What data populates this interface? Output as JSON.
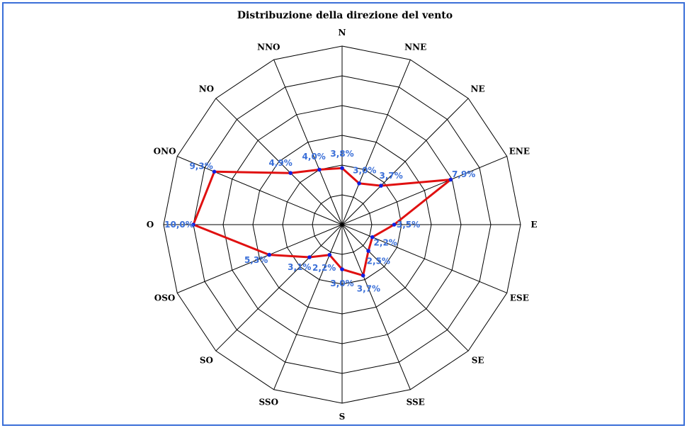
{
  "chart_data": {
    "type": "radar",
    "title": "Distribuzione della direzione del vento",
    "categories": [
      "N",
      "NNE",
      "NE",
      "ENE",
      "E",
      "ESE",
      "SE",
      "SSE",
      "S",
      "SSO",
      "SO",
      "OSO",
      "O",
      "ONO",
      "NO",
      "NNO"
    ],
    "series": [
      {
        "values": [
          3.8,
          3.0,
          3.7,
          7.9,
          3.5,
          2.2,
          2.5,
          3.7,
          3.0,
          2.2,
          3.1,
          5.3,
          10.0,
          9.3,
          4.9,
          4.0
        ],
        "labels": [
          "3,8%",
          "3,0%",
          "3,7%",
          "7,9%",
          "3,5%",
          "2,2%",
          "2,5%",
          "3,7%",
          "3,0%",
          "2,2%",
          "3,1%",
          "5,3%",
          "10,0%",
          "9,3%",
          "4,9%",
          "4,0%"
        ]
      }
    ],
    "rlim": [
      0,
      12
    ],
    "rings": 6,
    "grid": true,
    "colors": {
      "line": "#e01010",
      "marker": "#1020e0",
      "value_text": "#3a6fd8",
      "grid": "#000000",
      "frame": "#3a6fd8"
    }
  }
}
